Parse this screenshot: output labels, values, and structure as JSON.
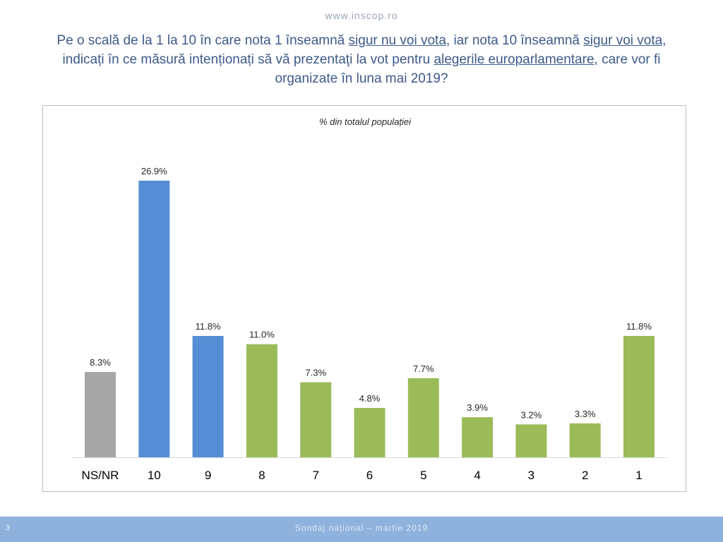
{
  "header": {
    "site_url": "www.inscop.ro"
  },
  "question": {
    "part1": "Pe o scală de la 1 la 10 în care nota 1 înseamnă ",
    "u1": "sigur nu voi vota",
    "part2": ", iar nota 10 înseamnă ",
    "u2": "sigur voi vota,",
    "part3": " indicați în ce măsură intenționați să vă prezentaţi la vot pentru ",
    "u3": "alegerile europarlamentare,",
    "part4": " care vor fi organizate în luna mai 2019?"
  },
  "footer": {
    "page_number": "3",
    "text": "Sondaj național – martie 2019"
  },
  "colors": {
    "gray": "#a6a6a6",
    "blue": "#558ed5",
    "green": "#9bbb59",
    "title": "#3d5a8a"
  },
  "chart_data": {
    "type": "bar",
    "title": "% din totalul populației",
    "categories": [
      "NS/NR",
      "10",
      "9",
      "8",
      "7",
      "6",
      "5",
      "4",
      "3",
      "2",
      "1"
    ],
    "values": [
      8.3,
      26.9,
      11.8,
      11.0,
      7.3,
      4.8,
      7.7,
      3.9,
      3.2,
      3.3,
      11.8
    ],
    "value_labels": [
      "8.3%",
      "26.9%",
      "11.8%",
      "11.0%",
      "7.3%",
      "4.8%",
      "7.7%",
      "3.9%",
      "3.2%",
      "3.3%",
      "11.8%"
    ],
    "bar_colors": [
      "gray",
      "blue",
      "blue",
      "green",
      "green",
      "green",
      "green",
      "green",
      "green",
      "green",
      "green"
    ],
    "ylim": [
      0,
      30
    ],
    "grid": false,
    "legend": "none"
  }
}
